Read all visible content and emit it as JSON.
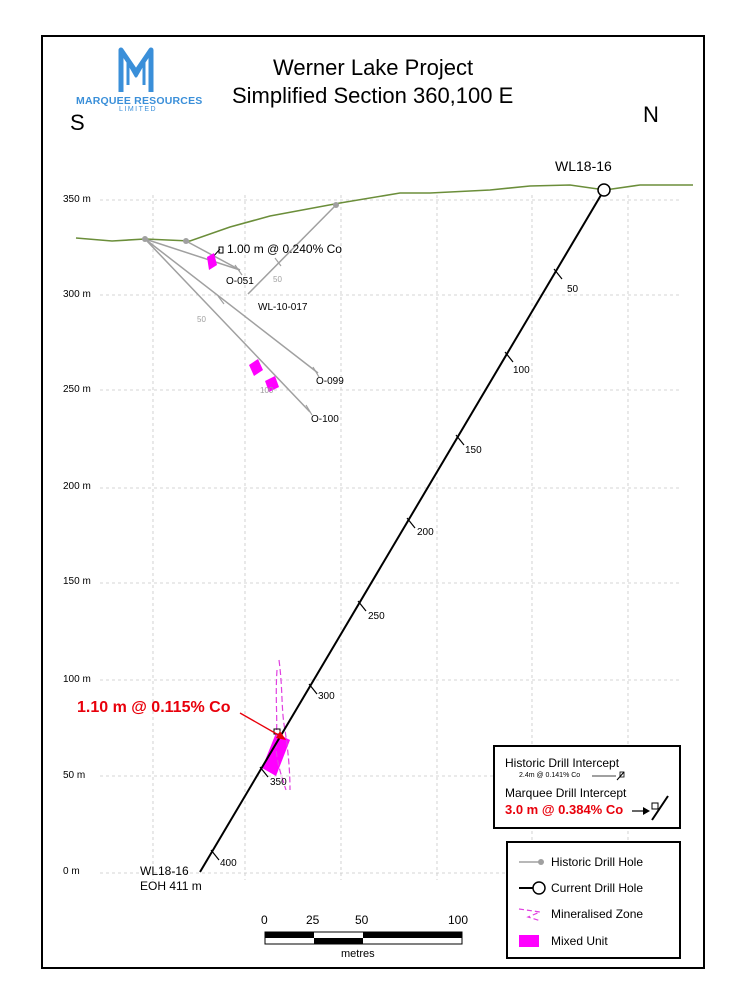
{
  "logo": {
    "name": "MARQUEE RESOURCES",
    "sub": "LIMITED",
    "color": "#3a8fd9"
  },
  "title": {
    "line1": "Werner Lake Project",
    "line2": "Simplified Section 360,100 E"
  },
  "compass": {
    "south": "S",
    "north": "N"
  },
  "elevation_labels": [
    "350 m",
    "300 m",
    "250 m",
    "200 m",
    "150 m",
    "100 m",
    "50 m",
    "0 m"
  ],
  "current_hole": {
    "name_top": "WL18-16",
    "name_bottom": "WL18-16",
    "eoh": "EOH 411 m",
    "depth_ticks": [
      "50",
      "100",
      "150",
      "200",
      "250",
      "300",
      "350",
      "400"
    ]
  },
  "historic_holes": {
    "labels": [
      "O-051",
      "WL-10-017",
      "O-099",
      "O-100"
    ],
    "depth_ticks": [
      "50",
      "50",
      "100"
    ],
    "intercept_text": "1.00 m @ 0.240% Co"
  },
  "marquee_intercept": "1.10 m @ 0.115% Co",
  "intercept_legend": {
    "historic_title": "Historic Drill Intercept",
    "historic_example": "2.4m @ 0.141% Co",
    "marquee_title": "Marquee Drill Intercept",
    "marquee_example": "3.0 m @ 0.384% Co"
  },
  "legend": {
    "items": [
      "Historic Drill Hole",
      "Current Drill Hole",
      "Mineralised Zone",
      "Mixed Unit"
    ]
  },
  "scale_bar": {
    "ticks": [
      "0",
      "25",
      "50",
      "100"
    ],
    "unit": "metres"
  },
  "colors": {
    "topography": "#6b8e3a",
    "historic_hole": "#a0a0a0",
    "mixed_unit": "#ff00ff",
    "mineralised_zone": "#e040e0",
    "intercept_red": "#e8000b",
    "grid": "#c8c8c8"
  }
}
